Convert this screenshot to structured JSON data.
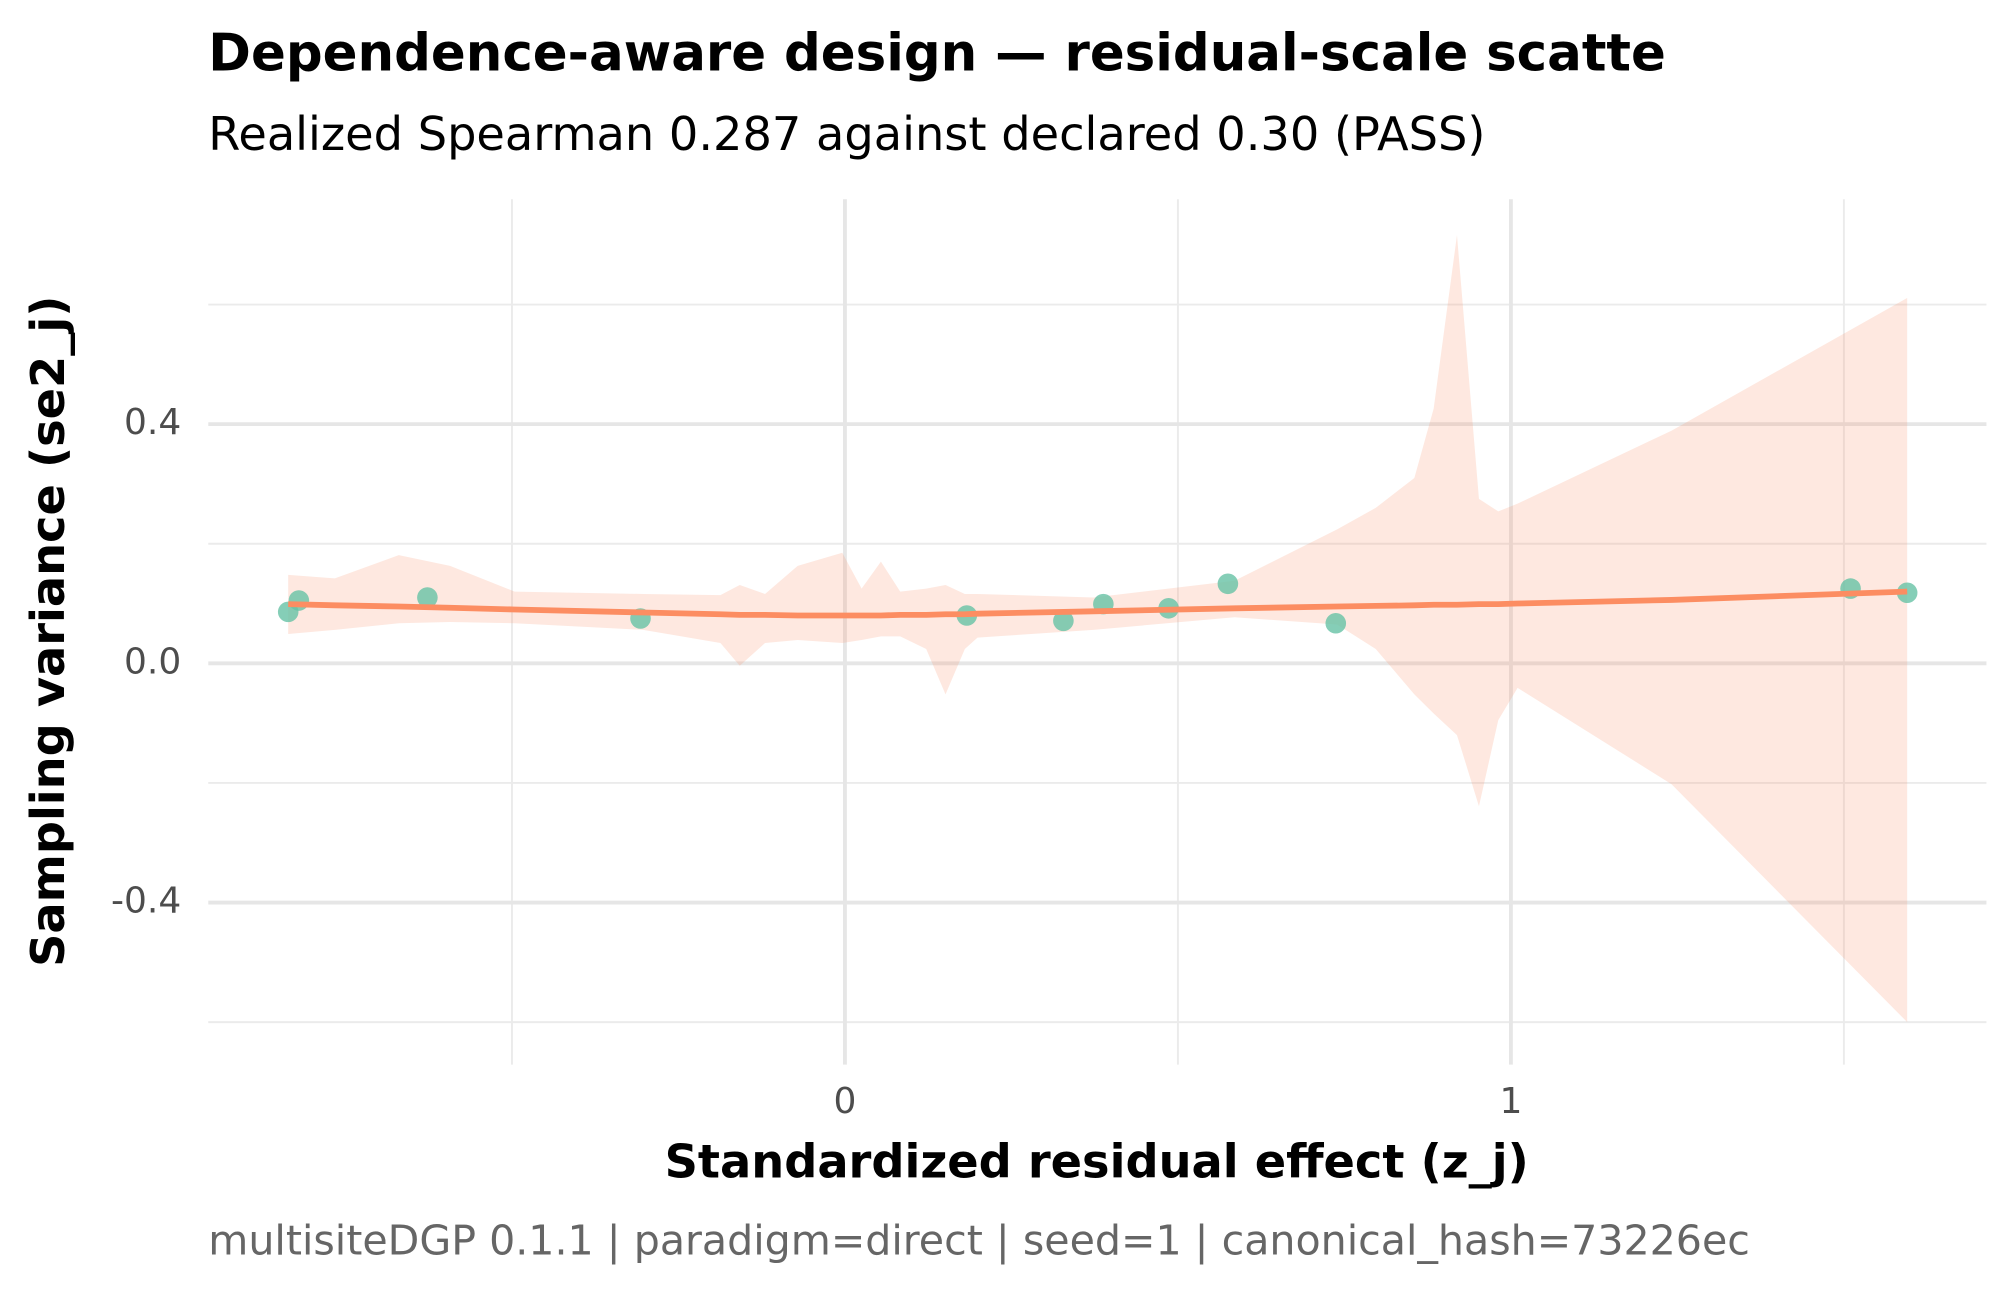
{
  "chart_data": {
    "type": "scatter",
    "title": "Dependence-aware design — residual-scale scatte",
    "subtitle": "Realized Spearman 0.287 against declared 0.30 (PASS)",
    "x_label": "Standardized residual effect (z_j)",
    "y_label": "Sampling variance (se2_j)",
    "caption": "multisiteDGP 0.1.1 | paradigm=direct | seed=1 | canonical_hash=73226ec",
    "xlim": [
      -0.956,
      1.714
    ],
    "ylim": [
      -0.671,
      0.776
    ],
    "xticks": [
      0,
      1
    ],
    "yticks": [
      -0.4,
      {
        "value": 0,
        "label": "0.0"
      },
      0.4
    ],
    "x_minor_grid": [
      -0.5,
      0.5,
      1.5
    ],
    "y_minor_grid": [
      -0.6,
      -0.2,
      0.2,
      0.6
    ],
    "grid": true,
    "point_color": "#66c2a5",
    "x": [
      -0.836,
      -0.82,
      -0.627,
      -0.307,
      0.183,
      0.328,
      0.388,
      0.486,
      0.575,
      0.737,
      1.51,
      1.595
    ],
    "values": [
      0.086,
      0.105,
      0.11,
      0.075,
      0.08,
      0.071,
      0.099,
      0.092,
      0.133,
      0.067,
      0.125,
      0.118
    ],
    "smooth": {
      "color": "#fc8d62",
      "x": [
        -0.836,
        -0.766,
        -0.67,
        -0.593,
        -0.496,
        -0.303,
        -0.187,
        -0.158,
        -0.12,
        -0.071,
        -0.004,
        0.025,
        0.054,
        0.083,
        0.122,
        0.151,
        0.18,
        0.199,
        0.373,
        0.585,
        0.739,
        0.797,
        0.855,
        0.884,
        0.919,
        0.952,
        0.981,
        1.01,
        1.241,
        1.595
      ],
      "fit": [
        0.099,
        0.097,
        0.095,
        0.093,
        0.09,
        0.085,
        0.082,
        0.081,
        0.081,
        0.08,
        0.08,
        0.08,
        0.08,
        0.081,
        0.081,
        0.082,
        0.082,
        0.083,
        0.087,
        0.092,
        0.095,
        0.096,
        0.097,
        0.098,
        0.098,
        0.099,
        0.099,
        0.1,
        0.106,
        0.12
      ],
      "upper": [
        0.148,
        0.142,
        0.181,
        0.163,
        0.12,
        0.116,
        0.114,
        0.131,
        0.116,
        0.163,
        0.185,
        0.125,
        0.17,
        0.12,
        0.125,
        0.131,
        0.116,
        0.116,
        0.11,
        0.138,
        0.224,
        0.26,
        0.31,
        0.426,
        0.716,
        0.275,
        0.254,
        0.267,
        0.389,
        0.611
      ],
      "lower": [
        0.049,
        0.056,
        0.067,
        0.069,
        0.067,
        0.056,
        0.034,
        -0.004,
        0.034,
        0.039,
        0.034,
        0.039,
        0.045,
        0.045,
        0.024,
        -0.052,
        0.024,
        0.043,
        0.056,
        0.077,
        0.065,
        0.024,
        -0.052,
        -0.084,
        -0.12,
        -0.239,
        -0.095,
        -0.041,
        -0.202,
        -0.6
      ]
    }
  }
}
